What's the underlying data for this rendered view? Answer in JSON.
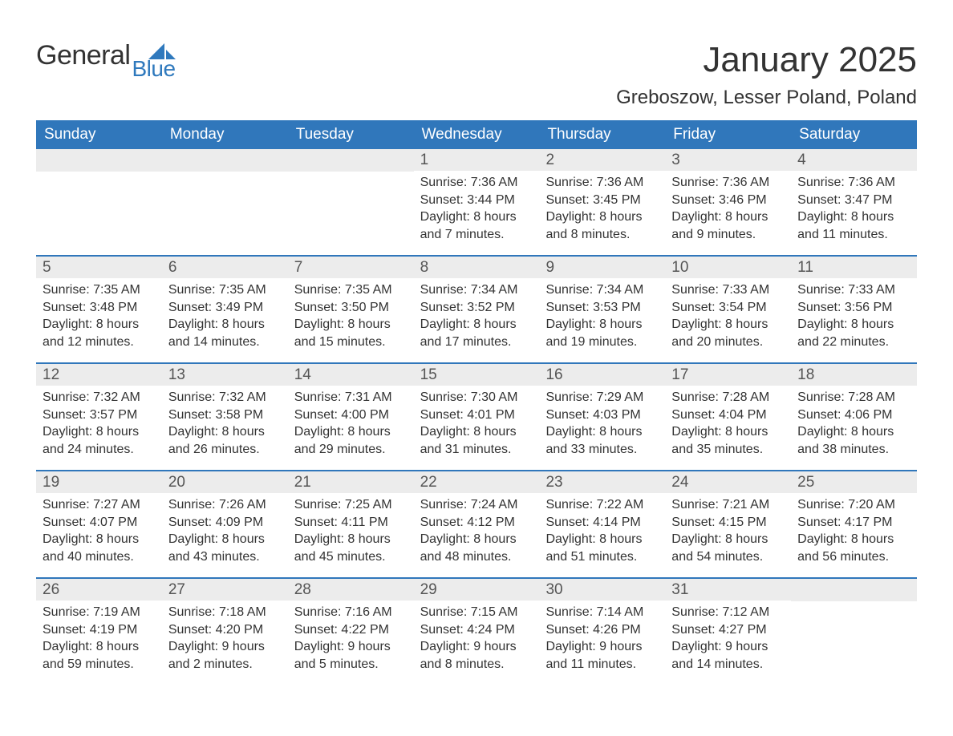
{
  "logo": {
    "text1": "General",
    "text2": "Blue"
  },
  "title": "January 2025",
  "subtitle": "Greboszow, Lesser Poland, Poland",
  "colors": {
    "header_bg": "#3077bb",
    "header_text": "#ffffff",
    "daynum_bg": "#ececec",
    "body_text": "#333333",
    "row_border": "#3077bb",
    "logo_blue": "#2f79bd"
  },
  "day_headers": [
    "Sunday",
    "Monday",
    "Tuesday",
    "Wednesday",
    "Thursday",
    "Friday",
    "Saturday"
  ],
  "weeks": [
    [
      {
        "day": "",
        "lines": []
      },
      {
        "day": "",
        "lines": []
      },
      {
        "day": "",
        "lines": []
      },
      {
        "day": "1",
        "lines": [
          "Sunrise: 7:36 AM",
          "Sunset: 3:44 PM",
          "Daylight: 8 hours",
          "and 7 minutes."
        ]
      },
      {
        "day": "2",
        "lines": [
          "Sunrise: 7:36 AM",
          "Sunset: 3:45 PM",
          "Daylight: 8 hours",
          "and 8 minutes."
        ]
      },
      {
        "day": "3",
        "lines": [
          "Sunrise: 7:36 AM",
          "Sunset: 3:46 PM",
          "Daylight: 8 hours",
          "and 9 minutes."
        ]
      },
      {
        "day": "4",
        "lines": [
          "Sunrise: 7:36 AM",
          "Sunset: 3:47 PM",
          "Daylight: 8 hours",
          "and 11 minutes."
        ]
      }
    ],
    [
      {
        "day": "5",
        "lines": [
          "Sunrise: 7:35 AM",
          "Sunset: 3:48 PM",
          "Daylight: 8 hours",
          "and 12 minutes."
        ]
      },
      {
        "day": "6",
        "lines": [
          "Sunrise: 7:35 AM",
          "Sunset: 3:49 PM",
          "Daylight: 8 hours",
          "and 14 minutes."
        ]
      },
      {
        "day": "7",
        "lines": [
          "Sunrise: 7:35 AM",
          "Sunset: 3:50 PM",
          "Daylight: 8 hours",
          "and 15 minutes."
        ]
      },
      {
        "day": "8",
        "lines": [
          "Sunrise: 7:34 AM",
          "Sunset: 3:52 PM",
          "Daylight: 8 hours",
          "and 17 minutes."
        ]
      },
      {
        "day": "9",
        "lines": [
          "Sunrise: 7:34 AM",
          "Sunset: 3:53 PM",
          "Daylight: 8 hours",
          "and 19 minutes."
        ]
      },
      {
        "day": "10",
        "lines": [
          "Sunrise: 7:33 AM",
          "Sunset: 3:54 PM",
          "Daylight: 8 hours",
          "and 20 minutes."
        ]
      },
      {
        "day": "11",
        "lines": [
          "Sunrise: 7:33 AM",
          "Sunset: 3:56 PM",
          "Daylight: 8 hours",
          "and 22 minutes."
        ]
      }
    ],
    [
      {
        "day": "12",
        "lines": [
          "Sunrise: 7:32 AM",
          "Sunset: 3:57 PM",
          "Daylight: 8 hours",
          "and 24 minutes."
        ]
      },
      {
        "day": "13",
        "lines": [
          "Sunrise: 7:32 AM",
          "Sunset: 3:58 PM",
          "Daylight: 8 hours",
          "and 26 minutes."
        ]
      },
      {
        "day": "14",
        "lines": [
          "Sunrise: 7:31 AM",
          "Sunset: 4:00 PM",
          "Daylight: 8 hours",
          "and 29 minutes."
        ]
      },
      {
        "day": "15",
        "lines": [
          "Sunrise: 7:30 AM",
          "Sunset: 4:01 PM",
          "Daylight: 8 hours",
          "and 31 minutes."
        ]
      },
      {
        "day": "16",
        "lines": [
          "Sunrise: 7:29 AM",
          "Sunset: 4:03 PM",
          "Daylight: 8 hours",
          "and 33 minutes."
        ]
      },
      {
        "day": "17",
        "lines": [
          "Sunrise: 7:28 AM",
          "Sunset: 4:04 PM",
          "Daylight: 8 hours",
          "and 35 minutes."
        ]
      },
      {
        "day": "18",
        "lines": [
          "Sunrise: 7:28 AM",
          "Sunset: 4:06 PM",
          "Daylight: 8 hours",
          "and 38 minutes."
        ]
      }
    ],
    [
      {
        "day": "19",
        "lines": [
          "Sunrise: 7:27 AM",
          "Sunset: 4:07 PM",
          "Daylight: 8 hours",
          "and 40 minutes."
        ]
      },
      {
        "day": "20",
        "lines": [
          "Sunrise: 7:26 AM",
          "Sunset: 4:09 PM",
          "Daylight: 8 hours",
          "and 43 minutes."
        ]
      },
      {
        "day": "21",
        "lines": [
          "Sunrise: 7:25 AM",
          "Sunset: 4:11 PM",
          "Daylight: 8 hours",
          "and 45 minutes."
        ]
      },
      {
        "day": "22",
        "lines": [
          "Sunrise: 7:24 AM",
          "Sunset: 4:12 PM",
          "Daylight: 8 hours",
          "and 48 minutes."
        ]
      },
      {
        "day": "23",
        "lines": [
          "Sunrise: 7:22 AM",
          "Sunset: 4:14 PM",
          "Daylight: 8 hours",
          "and 51 minutes."
        ]
      },
      {
        "day": "24",
        "lines": [
          "Sunrise: 7:21 AM",
          "Sunset: 4:15 PM",
          "Daylight: 8 hours",
          "and 54 minutes."
        ]
      },
      {
        "day": "25",
        "lines": [
          "Sunrise: 7:20 AM",
          "Sunset: 4:17 PM",
          "Daylight: 8 hours",
          "and 56 minutes."
        ]
      }
    ],
    [
      {
        "day": "26",
        "lines": [
          "Sunrise: 7:19 AM",
          "Sunset: 4:19 PM",
          "Daylight: 8 hours",
          "and 59 minutes."
        ]
      },
      {
        "day": "27",
        "lines": [
          "Sunrise: 7:18 AM",
          "Sunset: 4:20 PM",
          "Daylight: 9 hours",
          "and 2 minutes."
        ]
      },
      {
        "day": "28",
        "lines": [
          "Sunrise: 7:16 AM",
          "Sunset: 4:22 PM",
          "Daylight: 9 hours",
          "and 5 minutes."
        ]
      },
      {
        "day": "29",
        "lines": [
          "Sunrise: 7:15 AM",
          "Sunset: 4:24 PM",
          "Daylight: 9 hours",
          "and 8 minutes."
        ]
      },
      {
        "day": "30",
        "lines": [
          "Sunrise: 7:14 AM",
          "Sunset: 4:26 PM",
          "Daylight: 9 hours",
          "and 11 minutes."
        ]
      },
      {
        "day": "31",
        "lines": [
          "Sunrise: 7:12 AM",
          "Sunset: 4:27 PM",
          "Daylight: 9 hours",
          "and 14 minutes."
        ]
      },
      {
        "day": "",
        "lines": []
      }
    ]
  ]
}
